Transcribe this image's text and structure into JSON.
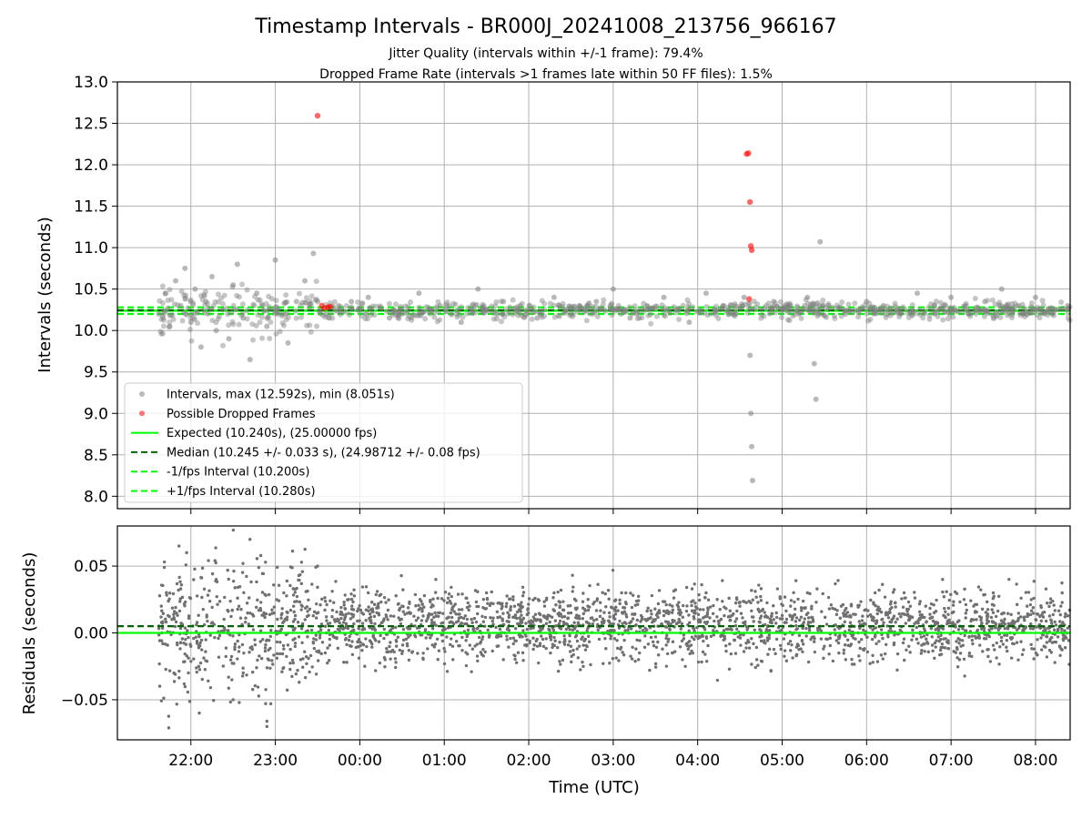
{
  "chart_data": [
    {
      "type": "scatter",
      "title": "Timestamp Intervals - BR000J_20241008_213756_966167",
      "subtitle_lines": [
        "Jitter Quality (intervals within +/-1 frame): 79.4%",
        "Dropped Frame Rate (intervals >1 frames late within 50 FF files): 1.5%"
      ],
      "ylabel": "Intervals (seconds)",
      "ylim": [
        7.85,
        13.0
      ],
      "xlim_hours": [
        21.13,
        32.41
      ],
      "yticks": [
        8.0,
        8.5,
        9.0,
        9.5,
        10.0,
        10.5,
        11.0,
        11.5,
        12.0,
        12.5,
        13.0
      ],
      "ytick_labels": [
        "8.0",
        "8.5",
        "9.0",
        "9.5",
        "10.0",
        "10.5",
        "11.0",
        "11.5",
        "12.0",
        "12.5",
        "13.0"
      ],
      "grid": true,
      "legend_position": "lower-left",
      "series": [
        {
          "name": "Intervals, max (12.592s), min (8.051s)",
          "kind": "points",
          "color": "#808080",
          "x_hours": [
            21.62,
            21.7,
            21.75,
            21.82,
            21.88,
            21.93,
            22.0,
            22.05,
            22.12,
            22.18,
            22.25,
            22.3,
            22.38,
            22.45,
            22.5,
            22.55,
            22.62,
            22.7,
            22.78,
            22.85,
            22.9,
            23.0,
            23.08,
            23.15,
            23.25,
            23.35,
            23.45,
            23.5,
            23.6,
            23.75,
            23.9,
            24.1,
            24.35,
            24.5,
            24.7,
            24.95,
            25.2,
            25.4,
            25.5,
            25.7,
            25.9,
            26.1,
            26.3,
            26.5,
            26.6,
            26.8,
            27.0,
            27.2,
            27.4,
            27.6,
            27.75,
            27.9,
            28.1,
            28.3,
            28.45,
            28.55,
            28.62,
            28.63,
            28.64,
            28.65,
            28.9,
            29.1,
            29.3,
            29.38,
            29.4,
            29.45,
            29.55,
            29.75,
            30.0,
            30.2,
            30.4,
            30.6,
            30.8,
            31.0,
            31.2,
            31.4,
            31.6,
            31.8,
            32.0,
            32.2,
            32.38
          ],
          "y": [
            10.2,
            10.45,
            10.05,
            10.6,
            10.3,
            10.75,
            10.1,
            10.5,
            9.8,
            10.35,
            10.65,
            10.0,
            10.25,
            9.9,
            10.55,
            10.8,
            10.15,
            9.65,
            10.45,
            10.3,
            10.05,
            10.85,
            10.2,
            9.85,
            10.35,
            10.6,
            10.93,
            10.35,
            10.2,
            10.3,
            10.35,
            10.4,
            10.15,
            10.2,
            10.45,
            10.3,
            10.1,
            10.5,
            10.25,
            10.35,
            10.3,
            10.15,
            10.4,
            10.2,
            10.3,
            10.35,
            10.5,
            10.15,
            10.3,
            10.4,
            10.25,
            10.1,
            10.45,
            10.3,
            10.2,
            10.4,
            9.7,
            9.0,
            8.6,
            8.19,
            10.35,
            10.3,
            10.4,
            9.6,
            9.17,
            11.07,
            10.3,
            10.2,
            10.35,
            10.3,
            10.2,
            10.45,
            10.3,
            10.4,
            10.25,
            10.35,
            10.5,
            10.3,
            10.4,
            10.2,
            10.3
          ]
        },
        {
          "name": "Possible Dropped Frames",
          "kind": "points",
          "color": "#ff0000",
          "x_hours": [
            23.5,
            23.55,
            23.62,
            23.65,
            23.58,
            28.58,
            28.6,
            28.62,
            28.63,
            28.64,
            28.61
          ],
          "y": [
            12.592,
            10.3,
            10.28,
            10.29,
            10.27,
            12.13,
            12.14,
            11.55,
            11.02,
            10.97,
            10.38
          ]
        },
        {
          "name": "Expected (10.240s), (25.00000 fps)",
          "kind": "hline",
          "y": 10.24,
          "color": "#00ff00",
          "style": "solid"
        },
        {
          "name": "Median (10.245 +/- 0.033 s), (24.98712 +/- 0.08 fps)",
          "kind": "hline",
          "y": 10.245,
          "color": "#006400",
          "style": "dashed"
        },
        {
          "name": "-1/fps Interval (10.200s)",
          "kind": "hline",
          "y": 10.2,
          "color": "#00ff00",
          "style": "dashed"
        },
        {
          "name": "+1/fps Interval (10.280s)",
          "kind": "hline",
          "y": 10.28,
          "color": "#00ff00",
          "style": "dashed"
        }
      ]
    },
    {
      "type": "scatter",
      "xlabel": "Time (UTC)",
      "ylabel": "Residuals (seconds)",
      "ylim": [
        -0.08,
        0.08
      ],
      "xlim_hours": [
        21.13,
        32.41
      ],
      "yticks": [
        -0.05,
        0.0,
        0.05
      ],
      "ytick_labels": [
        "−0.05",
        "0.00",
        "0.05"
      ],
      "xticks_hours": [
        22,
        23,
        24,
        25,
        26,
        27,
        28,
        29,
        30,
        31,
        32
      ],
      "xtick_labels": [
        "22:00",
        "23:00",
        "00:00",
        "01:00",
        "02:00",
        "03:00",
        "04:00",
        "05:00",
        "06:00",
        "07:00",
        "08:00"
      ],
      "grid": true,
      "series": [
        {
          "kind": "points",
          "color": "#707070",
          "x_hours": [
            21.65,
            21.8,
            21.95,
            22.1,
            22.3,
            22.5,
            22.7,
            22.9,
            23.1,
            23.3,
            23.5,
            23.7,
            23.9,
            24.1,
            24.3,
            24.5,
            24.7,
            24.9,
            25.1,
            25.3,
            25.5,
            25.7,
            25.9,
            26.1,
            26.3,
            26.5,
            26.7,
            26.9,
            27.1,
            27.3,
            27.5,
            27.7,
            27.9,
            28.1,
            28.3,
            28.5,
            28.7,
            28.9,
            29.1,
            29.3,
            29.5,
            29.7,
            29.9,
            30.1,
            30.3,
            30.5,
            30.7,
            30.9,
            31.1,
            31.3,
            31.5,
            31.7,
            31.9,
            32.1,
            32.3
          ],
          "y": [
            0.02,
            -0.03,
            0.06,
            -0.06,
            0.04,
            -0.05,
            0.07,
            -0.07,
            0.03,
            -0.02,
            0.05,
            0.01,
            -0.01,
            0.03,
            -0.02,
            0.02,
            0.0,
            0.04,
            -0.01,
            0.02,
            0.03,
            -0.02,
            0.02,
            0.01,
            0.03,
            -0.01,
            0.02,
            0.0,
            0.03,
            -0.02,
            0.01,
            0.02,
            -0.01,
            0.03,
            0.0,
            0.02,
            -0.02,
            0.01,
            0.02,
            0.03,
            -0.01,
            0.02,
            0.0,
            0.03,
            0.01,
            -0.01,
            0.02,
            0.04,
            -0.02,
            0.01,
            0.03,
            0.0,
            0.02,
            -0.01,
            0.02
          ]
        },
        {
          "kind": "hline",
          "y": 0.0,
          "color": "#00ff00",
          "style": "solid"
        },
        {
          "kind": "hline",
          "y": 0.005,
          "color": "#006400",
          "style": "dashed"
        }
      ]
    }
  ]
}
